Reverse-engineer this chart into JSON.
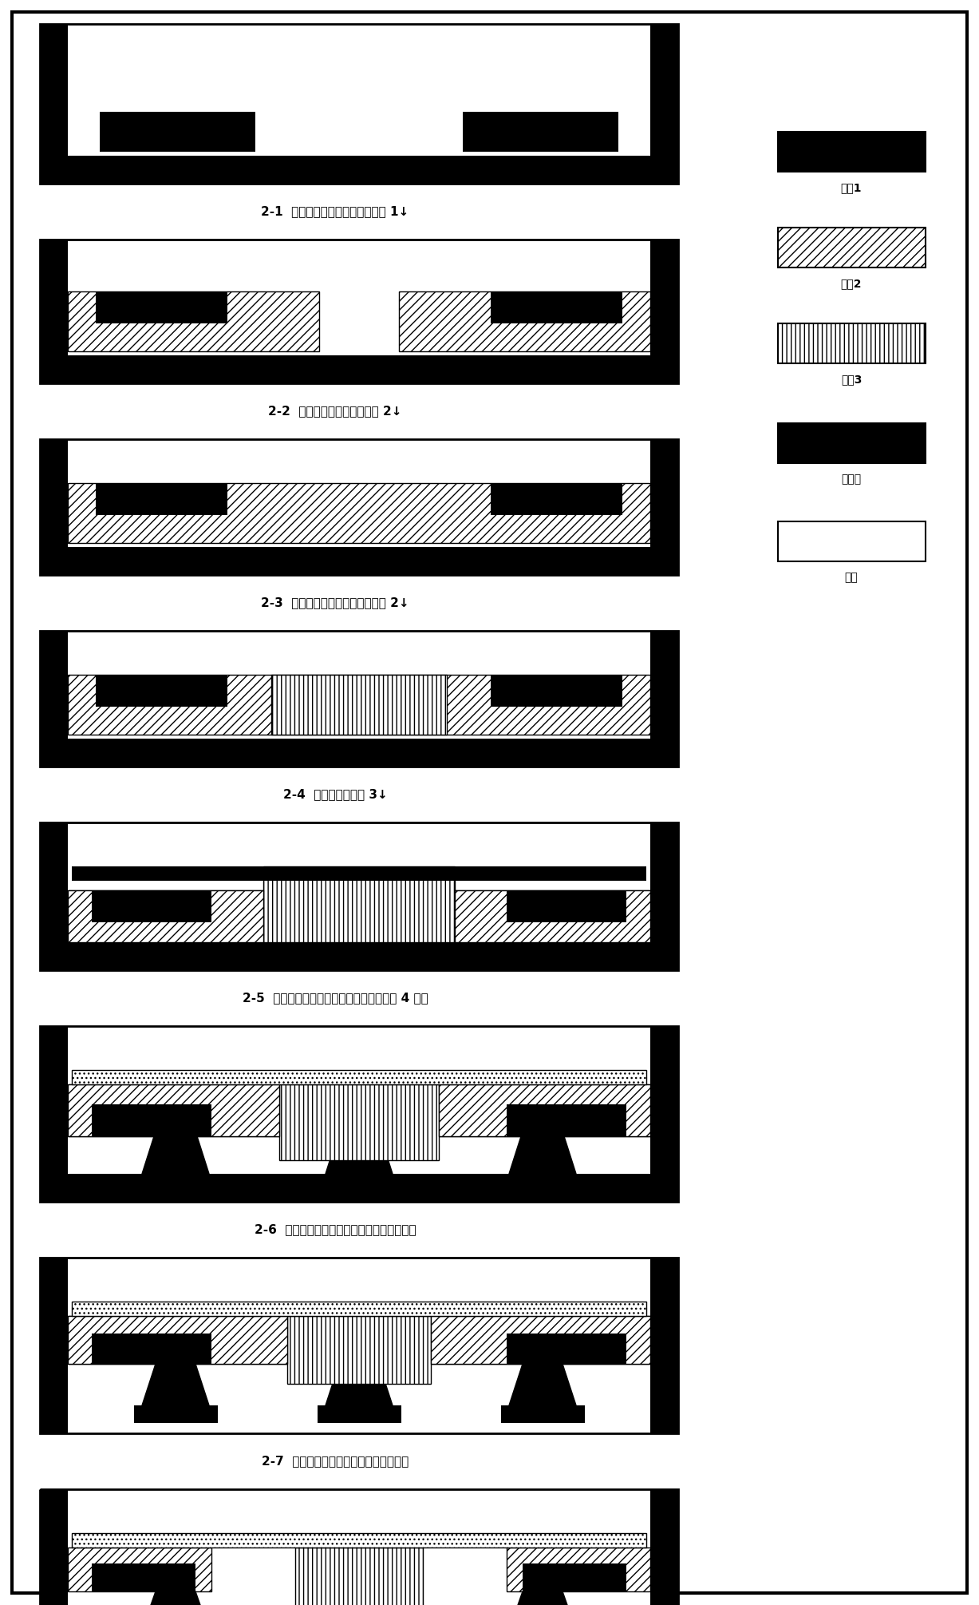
{
  "step_labels": [
    "2-1  剖饰腔体，淠积并图形化金属 1↓",
    "2-2  淠积并图形化牢性层金属 2↓",
    "2-3  继续淠积并图形化牢性层金属 2↓",
    "2-4  电镇上电极金属 3↓",
    "2-5  淠积绕缘层，在其上淠积并图形化金属 4 剂图",
    "2-6  进行器件背面剖饰，并完成上下电极引出",
    "2-7  牢性层层饰，释放平板及折叠梁结构"
  ],
  "legend_labels": [
    "金属1",
    "金属2",
    "金属3",
    "绕缘层",
    "贴底"
  ]
}
